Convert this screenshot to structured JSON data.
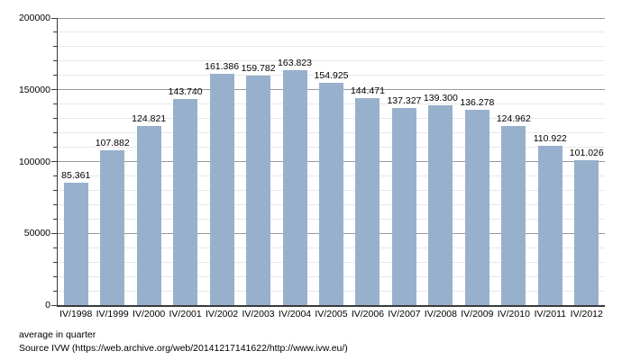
{
  "chart_data": {
    "type": "bar",
    "title": "",
    "xlabel": "",
    "ylabel": "",
    "categories": [
      "IV/1998",
      "IV/1999",
      "IV/2000",
      "IV/2001",
      "IV/2002",
      "IV/2003",
      "IV/2004",
      "IV/2005",
      "IV/2006",
      "IV/2007",
      "IV/2008",
      "IV/2009",
      "IV/2010",
      "IV/2011",
      "IV/2012"
    ],
    "values": [
      85361,
      107882,
      124821,
      143740,
      161386,
      159782,
      163823,
      154925,
      144471,
      137327,
      139300,
      136278,
      124962,
      110922,
      101026
    ],
    "value_labels": [
      "85.361",
      "107.882",
      "124.821",
      "143.740",
      "161.386",
      "159.782",
      "163.823",
      "154.925",
      "144.471",
      "137.327",
      "139.300",
      "136.278",
      "124.962",
      "110.922",
      "101.026"
    ],
    "ylim": [
      0,
      200000
    ],
    "y_major_step": 50000,
    "y_minor_step": 10000,
    "y_tick_labels": [
      "0",
      "50000",
      "100000",
      "150000",
      "200000"
    ],
    "grid": "horizontal-minor-and-major",
    "legend": "none",
    "colors": {
      "bar": "#97b1cd",
      "grid_minor": "#e8e8e8",
      "grid_major": "#9a9a9a",
      "axis": "#3a3a3a",
      "text": "#000000",
      "background": "#ffffff"
    }
  },
  "footer": {
    "note": "average in quarter",
    "source": "Source IVW (https://web.archive.org/web/20141217141622/http://www.ivw.eu/)"
  }
}
